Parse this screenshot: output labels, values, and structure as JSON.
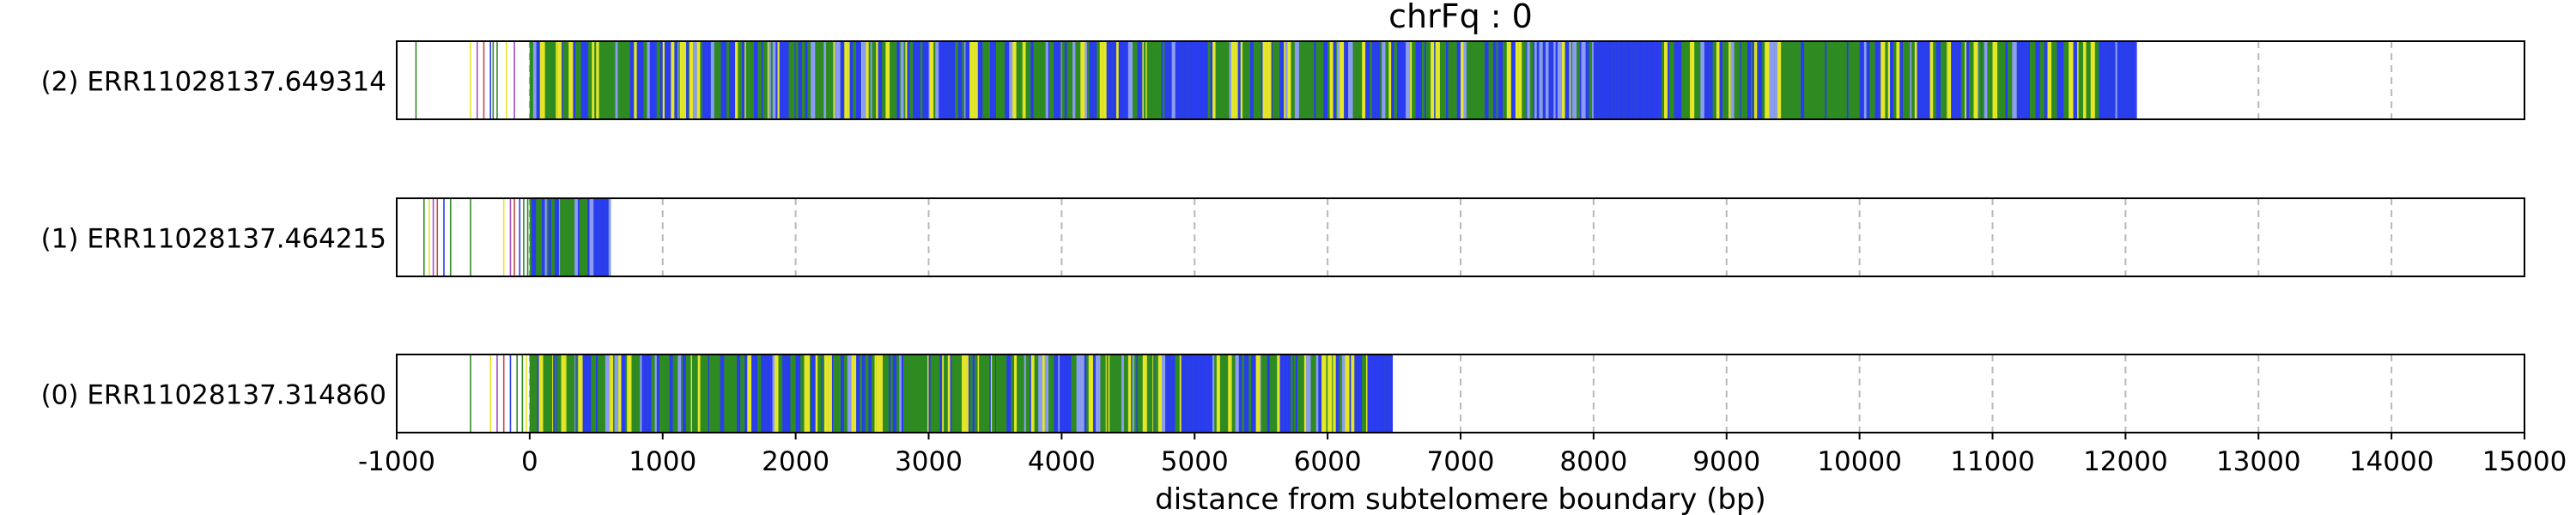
{
  "chart_data": {
    "type": "read-plot",
    "title": "chrFq : 0",
    "xlabel": "distance from subtelomere boundary (bp)",
    "xlim": [
      -1000,
      15000
    ],
    "xticks": [
      -1000,
      0,
      1000,
      2000,
      3000,
      4000,
      5000,
      6000,
      7000,
      8000,
      9000,
      10000,
      11000,
      12000,
      13000,
      14000,
      15000
    ],
    "grid": "x-dashed",
    "colors": {
      "green": "#2e8b22",
      "blue": "#2a3cf0",
      "yellow": "#e6e628",
      "lightblue": "#8c9cf5",
      "purple": "#a24cc8",
      "red": "#c84a4a",
      "frame": "#000000",
      "grid": "#b8b8b8"
    },
    "reads": [
      {
        "label": "(2) ERR11028137.649314",
        "end": 12080,
        "segments": [
          [
            0,
            500,
            "mixed"
          ],
          [
            500,
            1000,
            "mixed"
          ],
          [
            1000,
            1500,
            "mixed"
          ],
          [
            1500,
            2000,
            "mixed"
          ],
          [
            2000,
            2500,
            "mixed"
          ],
          [
            2500,
            3000,
            "mixed"
          ],
          [
            3000,
            3500,
            "mixed"
          ],
          [
            3500,
            4000,
            "mixed"
          ],
          [
            4000,
            4500,
            "mixed"
          ],
          [
            4500,
            4800,
            "mixed"
          ],
          [
            4800,
            5100,
            "blue"
          ],
          [
            5100,
            5500,
            "mixed"
          ],
          [
            5500,
            6000,
            "mixed"
          ],
          [
            6000,
            6500,
            "mixed"
          ],
          [
            6500,
            7000,
            "mixed"
          ],
          [
            7000,
            7500,
            "mixed"
          ],
          [
            7500,
            8000,
            "lightmix"
          ],
          [
            8000,
            8500,
            "blue"
          ],
          [
            8500,
            9000,
            "mixed"
          ],
          [
            9000,
            9500,
            "mixed"
          ],
          [
            9500,
            10000,
            "green"
          ],
          [
            10000,
            10500,
            "mixed"
          ],
          [
            10500,
            11000,
            "mixed"
          ],
          [
            11000,
            11500,
            "mixed"
          ],
          [
            11500,
            11800,
            "mixed"
          ],
          [
            11800,
            12080,
            "blue"
          ]
        ],
        "scatter": [
          -860,
          -450,
          -400,
          -350,
          -300,
          -280,
          -250,
          -180,
          -120
        ]
      },
      {
        "label": "(1) ERR11028137.464215",
        "end": 610,
        "segments": [
          [
            0,
            450,
            "mixed"
          ],
          [
            450,
            610,
            "blue"
          ]
        ],
        "scatter": [
          -800,
          -760,
          -730,
          -700,
          -650,
          -600,
          -450,
          -200,
          -150,
          -120,
          -80,
          -50,
          -20
        ]
      },
      {
        "label": "(0) ERR11028137.314860",
        "end": 6490,
        "segments": [
          [
            0,
            500,
            "mixed"
          ],
          [
            500,
            1000,
            "mixed"
          ],
          [
            1000,
            1500,
            "mixed"
          ],
          [
            1500,
            2000,
            "mixed"
          ],
          [
            2000,
            2500,
            "mixed"
          ],
          [
            2500,
            3000,
            "mixed"
          ],
          [
            3000,
            3500,
            "mixed"
          ],
          [
            3500,
            4000,
            "mixed"
          ],
          [
            4000,
            4500,
            "mixed"
          ],
          [
            4500,
            4900,
            "mixed"
          ],
          [
            4900,
            5100,
            "blue"
          ],
          [
            5100,
            5500,
            "mixed"
          ],
          [
            5500,
            6000,
            "mixed"
          ],
          [
            6000,
            6300,
            "mixed"
          ],
          [
            6300,
            6490,
            "blue"
          ]
        ],
        "scatter": [
          -450,
          -300,
          -250,
          -200,
          -150,
          -100,
          -60,
          -30
        ]
      }
    ]
  }
}
